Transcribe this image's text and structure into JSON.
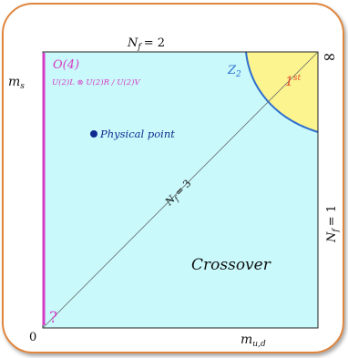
{
  "labels": {
    "top_flavor": "N",
    "top_flavor_sub": "f",
    "top_flavor_eq": "= 2",
    "ms_axis": "m",
    "ms_sub": "s",
    "infinity": "∞",
    "origin": "0",
    "mud_axis": "m",
    "mud_sub": "u,d",
    "right_flavor": "N",
    "right_flavor_sub": "f",
    "right_flavor_eq": "= 1",
    "diag_flavor": "N",
    "diag_flavor_sub": "f",
    "diag_flavor_eq": "= 3",
    "o4": "O(4)",
    "symmetry": "U(2)L ⊗ U(2)R / U(2)V",
    "z2": "Z",
    "z2_sub": "2",
    "first_order": "1",
    "first_order_sup": "st",
    "physical_point": "Physical point",
    "crossover": "Crossover",
    "question": "?"
  },
  "colors": {
    "background": "#c9f9fb",
    "first_order_region": "#fcf48f",
    "critical_line": "#2e6fce",
    "o4_line": "#d63cc6",
    "frame": "#e0863e",
    "physical_point": "#102b8f",
    "first_order_label": "#e34d2e"
  }
}
